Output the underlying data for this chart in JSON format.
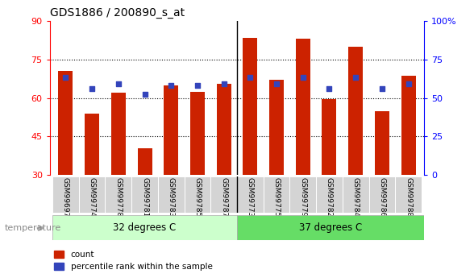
{
  "title": "GDS1886 / 200890_s_at",
  "samples": [
    "GSM99697",
    "GSM99774",
    "GSM99778",
    "GSM99781",
    "GSM99783",
    "GSM99785",
    "GSM99787",
    "GSM99773",
    "GSM99775",
    "GSM99779",
    "GSM99782",
    "GSM99784",
    "GSM99786",
    "GSM99788"
  ],
  "bar_values": [
    70.5,
    54.0,
    62.0,
    40.5,
    65.0,
    62.5,
    65.5,
    83.5,
    67.0,
    83.0,
    59.5,
    80.0,
    55.0,
    68.5
  ],
  "dot_values": [
    68.0,
    63.5,
    65.5,
    61.5,
    65.0,
    65.0,
    65.5,
    68.0,
    65.5,
    68.0,
    63.5,
    68.0,
    63.5,
    65.5
  ],
  "group1_label": "32 degrees C",
  "group2_label": "37 degrees C",
  "group1_count": 7,
  "group2_count": 7,
  "ymin": 30,
  "ymax": 90,
  "y2min": 0,
  "y2max": 100,
  "yticks": [
    30,
    45,
    60,
    75,
    90
  ],
  "y2ticks": [
    0,
    25,
    50,
    75,
    100
  ],
  "bar_color": "#cc2200",
  "dot_color": "#3344bb",
  "group1_color": "#ccffcc",
  "group2_color": "#66dd66",
  "temp_label": "temperature",
  "legend_count": "count",
  "legend_percentile": "percentile rank within the sample",
  "tick_bg_color": "#d4d4d4",
  "bar_bottom": 30
}
